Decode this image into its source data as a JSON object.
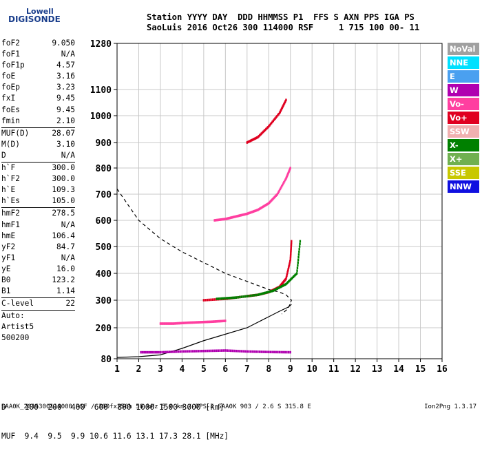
{
  "logo": {
    "line1": "Lowell",
    "line2": "DIGISONDE"
  },
  "header": {
    "line1": "Station YYYY DAY  DDD HHMMSS P1  FFS S AXN PPS IGA PS",
    "line2": "SaoLuis 2016 Oct26 300 114000 RSF     1 715 100 00- 11"
  },
  "parameters": [
    {
      "label": "foF2",
      "value": "9.050"
    },
    {
      "label": "foF1",
      "value": "N/A"
    },
    {
      "label": "foF1p",
      "value": "4.57"
    },
    {
      "label": "foE",
      "value": "3.16"
    },
    {
      "label": "foEp",
      "value": "3.23"
    },
    {
      "label": "fxI",
      "value": "9.45"
    },
    {
      "label": "foEs",
      "value": "9.45"
    },
    {
      "label": "fmin",
      "value": "2.10"
    },
    {
      "sep": true
    },
    {
      "label": "MUF(D)",
      "value": "28.07"
    },
    {
      "label": "M(D)",
      "value": "3.10"
    },
    {
      "label": "D",
      "value": "N/A"
    },
    {
      "sep": true
    },
    {
      "label": "h`F",
      "value": "300.0"
    },
    {
      "label": "h`F2",
      "value": "300.0"
    },
    {
      "label": "h`E",
      "value": "109.3"
    },
    {
      "label": "h`Es",
      "value": "105.0"
    },
    {
      "sep": true
    },
    {
      "label": "hmF2",
      "value": "278.5"
    },
    {
      "label": "hmF1",
      "value": "N/A"
    },
    {
      "label": "hmE",
      "value": "106.4"
    },
    {
      "label": "yF2",
      "value": "84.7"
    },
    {
      "label": "yF1",
      "value": "N/A"
    },
    {
      "label": "yE",
      "value": "16.0"
    },
    {
      "label": "B0",
      "value": "123.2"
    },
    {
      "label": "B1",
      "value": "1.14"
    },
    {
      "sep": true
    },
    {
      "label": "C-level",
      "value": "22"
    },
    {
      "sep": true
    },
    {
      "label": "Auto:",
      "value": ""
    },
    {
      "label": "Artist5",
      "value": ""
    },
    {
      "label": "500200",
      "value": ""
    }
  ],
  "freq_table": {
    "row1": "D    100  200  400  600  800 1000 1500 3000 [km]",
    "row2": "MUF  9.4  9.5  9.9 10.6 11.6 13.1 17.3 28.1 [MHz]"
  },
  "footer": {
    "left": "SAA0K_2016300114000.RSF / 300fx256h 50 kHz 5.0 km / DPS-4 SAA0K 903 / 2.6 S 315.8 E",
    "right": "Ion2Png 1.3.17"
  },
  "legend": [
    {
      "label": "NoVal",
      "color": "#a0a0a0"
    },
    {
      "label": "NNE",
      "color": "#00e0ff"
    },
    {
      "label": "E",
      "color": "#4aa0f0"
    },
    {
      "label": "W",
      "color": "#b000b0"
    },
    {
      "label": "Vo-",
      "color": "#ff3fa0"
    },
    {
      "label": "Vo+",
      "color": "#e00020"
    },
    {
      "label": "SSW",
      "color": "#f0b0b0"
    },
    {
      "label": "X-",
      "color": "#008000"
    },
    {
      "label": "X+",
      "color": "#70b050"
    },
    {
      "label": "SSE",
      "color": "#c8c800"
    },
    {
      "label": "NNW",
      "color": "#1010e0"
    }
  ],
  "chart_data": {
    "type": "scatter",
    "title": "",
    "xlabel": "",
    "ylabel": "",
    "xlim": [
      1,
      16
    ],
    "ylim": [
      80,
      1280
    ],
    "xticks": [
      1,
      2,
      3,
      4,
      5,
      6,
      7,
      8,
      9,
      10,
      11,
      12,
      13,
      14,
      15,
      16
    ],
    "yticks": [
      80,
      200,
      300,
      400,
      500,
      600,
      700,
      800,
      900,
      1000,
      1100,
      1280
    ],
    "grid": true,
    "legend_position": "right",
    "curves": [
      {
        "name": "profile",
        "style": "solid",
        "color": "#000000",
        "x": [
          1.0,
          2.0,
          3.0,
          4.0,
          5.0,
          6.0,
          7.0,
          8.0,
          8.5,
          8.9,
          9.05
        ],
        "y": [
          85,
          88,
          95,
          120,
          150,
          175,
          200,
          240,
          260,
          275,
          285
        ]
      },
      {
        "name": "model",
        "style": "dashed",
        "color": "#000000",
        "x": [
          1.0,
          2.0,
          3.0,
          4.0,
          5.0,
          6.0,
          7.0,
          8.0,
          8.5,
          8.8,
          9.05,
          8.9,
          8.6
        ],
        "y": [
          720,
          600,
          530,
          480,
          440,
          400,
          370,
          340,
          330,
          320,
          300,
          270,
          250
        ]
      },
      {
        "name": "F2 O-trace",
        "style": "dots",
        "color": "#e00020",
        "x": [
          5.0,
          6.0,
          7.0,
          7.5,
          8.0,
          8.5,
          8.8,
          9.0,
          9.05
        ],
        "y": [
          300,
          305,
          315,
          320,
          330,
          350,
          380,
          450,
          520
        ]
      },
      {
        "name": "F2 X-trace",
        "style": "dots",
        "color": "#008000",
        "x": [
          5.6,
          6.5,
          7.5,
          8.2,
          8.8,
          9.3,
          9.45
        ],
        "y": [
          305,
          310,
          320,
          335,
          360,
          400,
          520
        ]
      },
      {
        "name": "2F O-trace",
        "style": "dots",
        "color": "#ff3fa0",
        "x": [
          5.5,
          6.0,
          6.5,
          7.0,
          7.5,
          8.0,
          8.4,
          8.8,
          9.0
        ],
        "y": [
          600,
          605,
          615,
          625,
          640,
          665,
          700,
          760,
          800
        ]
      },
      {
        "name": "3F O-trace",
        "style": "dots",
        "color": "#e00020",
        "x": [
          7.0,
          7.5,
          8.0,
          8.5,
          8.8
        ],
        "y": [
          900,
          920,
          960,
          1010,
          1060
        ]
      },
      {
        "name": "Es trace",
        "style": "dots",
        "color": "#b000b0",
        "x": [
          2.1,
          3.0,
          4.0,
          5.0,
          6.0,
          7.0,
          8.0,
          9.0
        ],
        "y": [
          105,
          105,
          108,
          110,
          112,
          108,
          106,
          105
        ]
      },
      {
        "name": "2Es trace",
        "style": "dots",
        "color": "#ff3fa0",
        "x": [
          3.0,
          3.6,
          4.2,
          4.8,
          5.4,
          6.0
        ],
        "y": [
          215,
          215,
          218,
          220,
          222,
          225
        ]
      }
    ]
  }
}
